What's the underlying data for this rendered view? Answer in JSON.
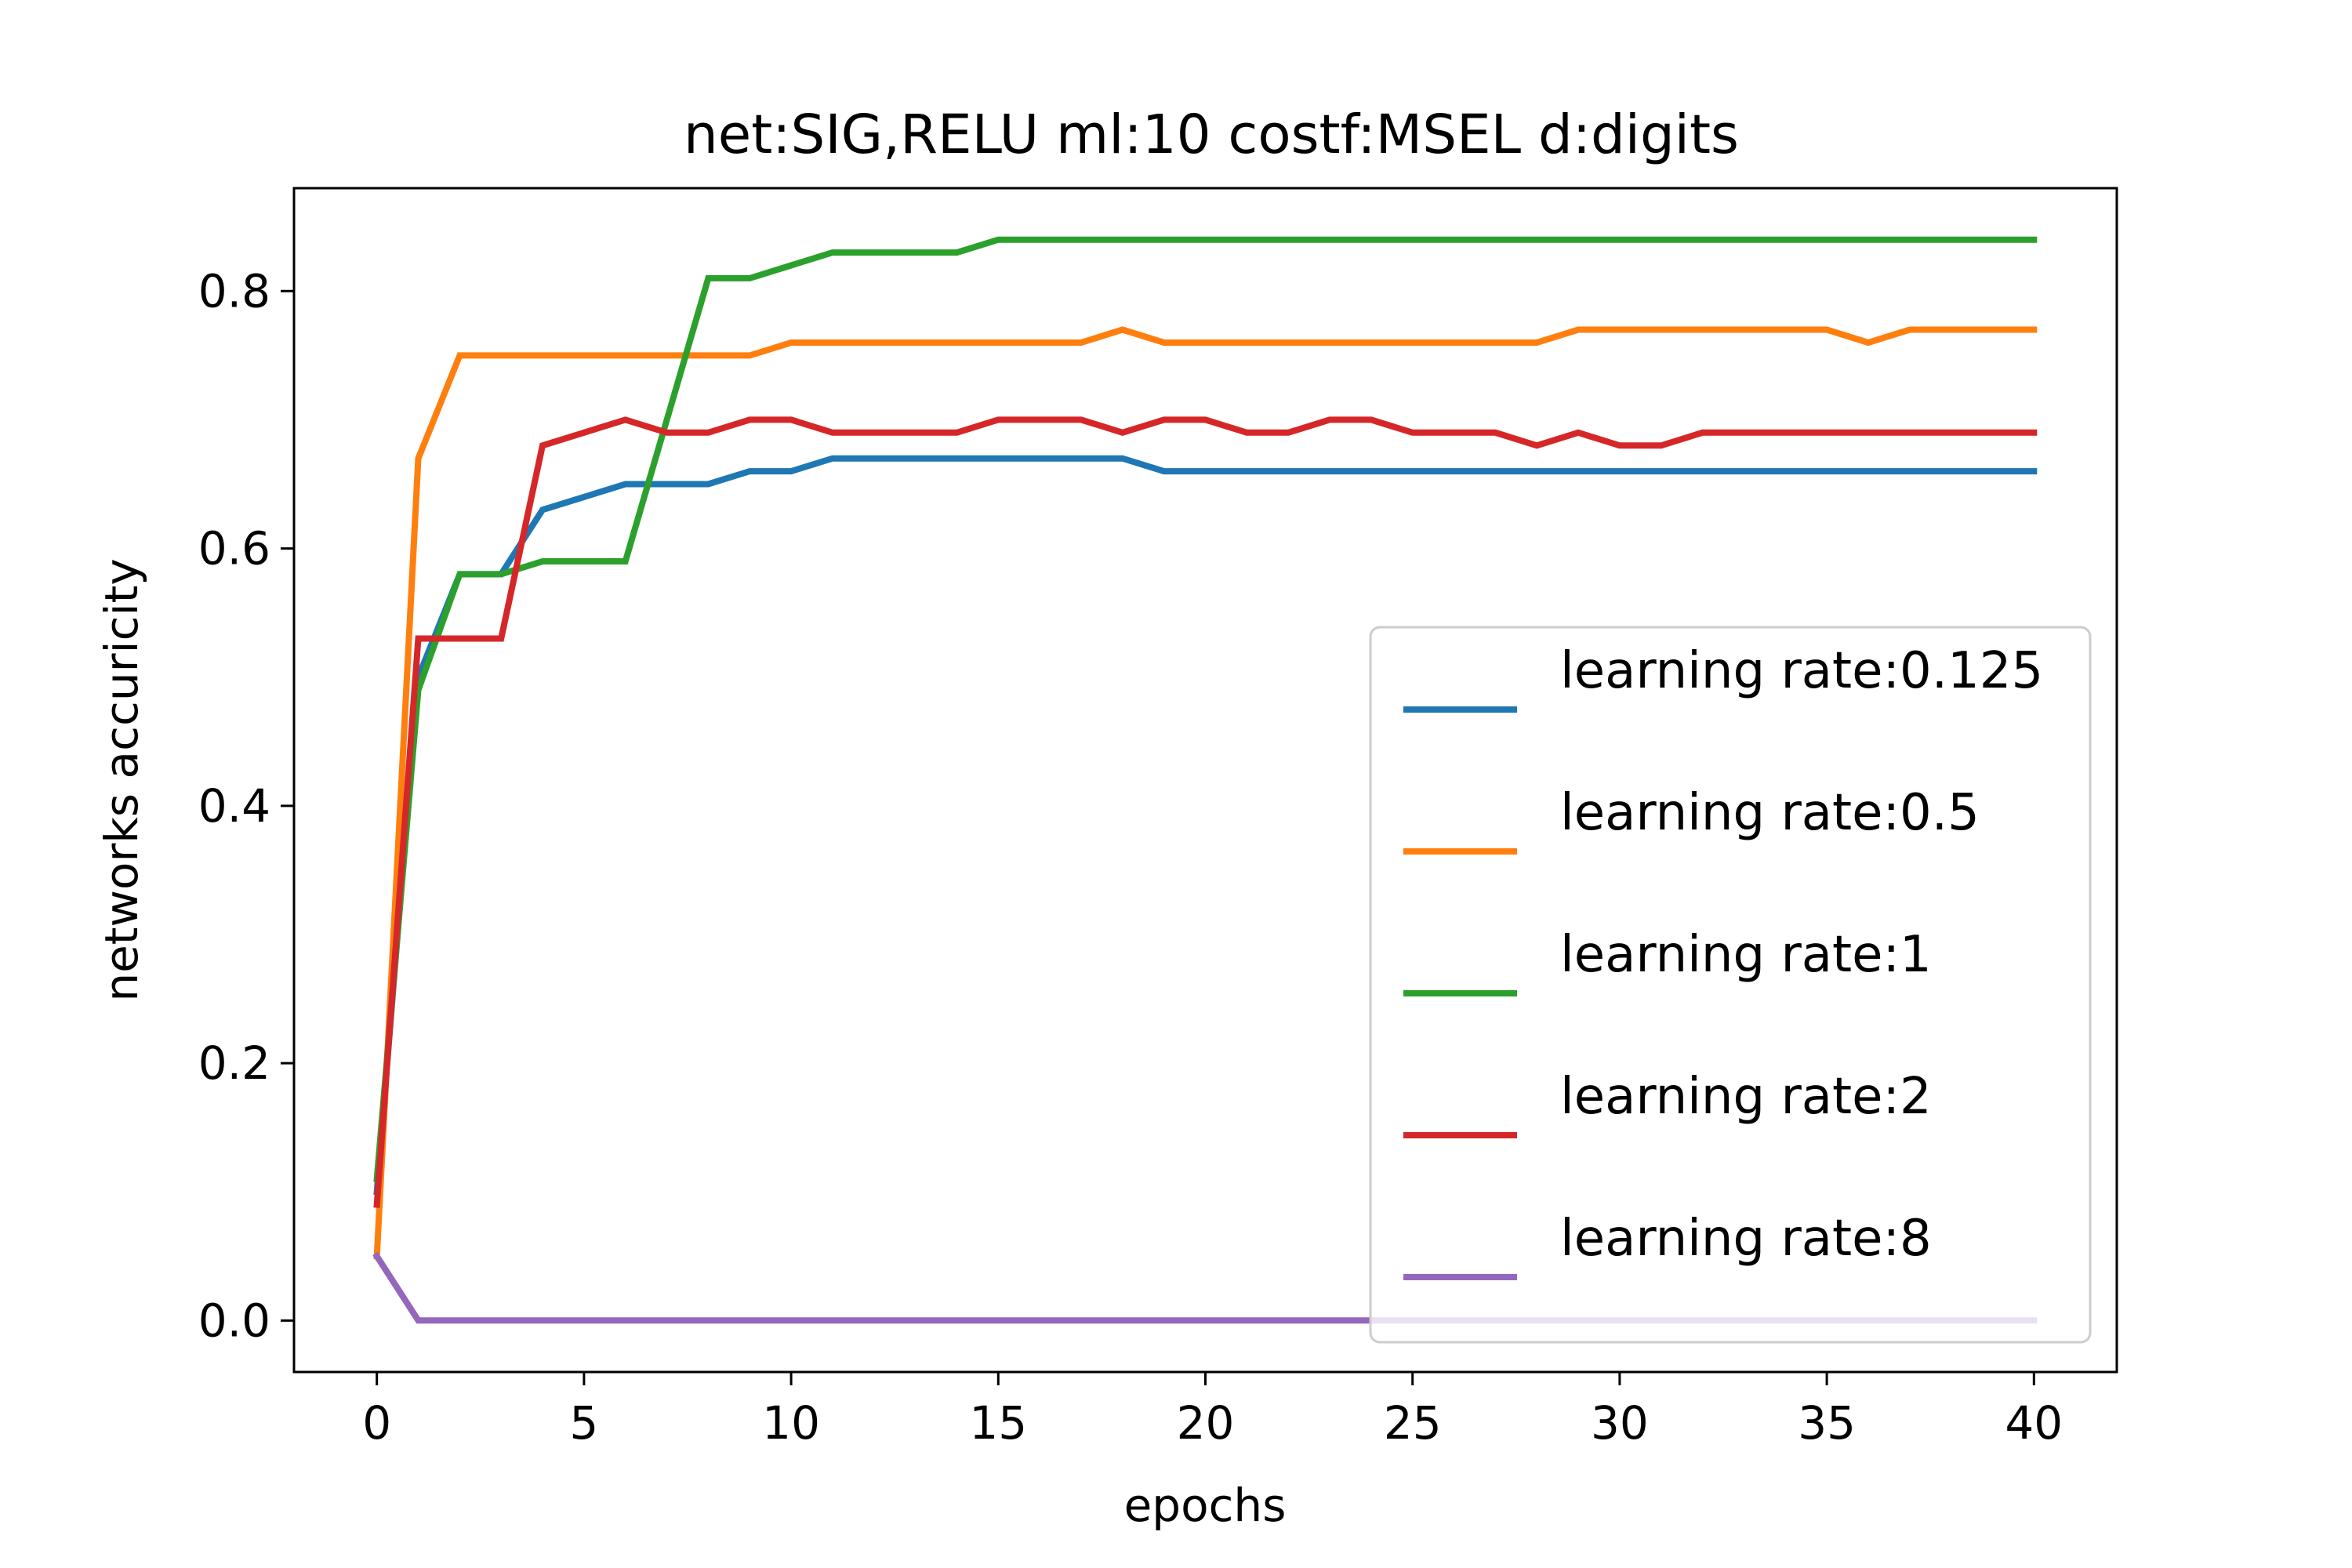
{
  "chart_data": {
    "type": "line",
    "title": "net:SIG,RELU ml:10 costf:MSEL d:digits",
    "xlabel": "epochs",
    "ylabel": "networks accuricity",
    "xlim": [
      -2,
      42
    ],
    "ylim": [
      -0.04,
      0.88
    ],
    "xticks": [
      0,
      5,
      10,
      15,
      20,
      25,
      30,
      35,
      40
    ],
    "xtick_labels": [
      "0",
      "5",
      "10",
      "15",
      "20",
      "25",
      "30",
      "35",
      "40"
    ],
    "yticks": [
      0.0,
      0.2,
      0.4,
      0.6,
      0.8
    ],
    "ytick_labels": [
      "0.0",
      "0.2",
      "0.4",
      "0.6",
      "0.8"
    ],
    "grid": false,
    "legend_position": "lower-right",
    "x": [
      0,
      1,
      2,
      3,
      4,
      5,
      6,
      7,
      8,
      9,
      10,
      11,
      12,
      13,
      14,
      15,
      16,
      17,
      18,
      19,
      20,
      21,
      22,
      23,
      24,
      25,
      26,
      27,
      28,
      29,
      30,
      31,
      32,
      33,
      34,
      35,
      36,
      37,
      38,
      39,
      40
    ],
    "series": [
      {
        "name": "learning rate:0.125",
        "color": "#1f77b4",
        "values": [
          0.1,
          0.5,
          0.58,
          0.58,
          0.63,
          0.64,
          0.65,
          0.65,
          0.65,
          0.66,
          0.66,
          0.67,
          0.67,
          0.67,
          0.67,
          0.67,
          0.67,
          0.67,
          0.67,
          0.66,
          0.66,
          0.66,
          0.66,
          0.66,
          0.66,
          0.66,
          0.66,
          0.66,
          0.66,
          0.66,
          0.66,
          0.66,
          0.66,
          0.66,
          0.66,
          0.66,
          0.66,
          0.66,
          0.66,
          0.66,
          0.66
        ]
      },
      {
        "name": "learning rate:0.5",
        "color": "#ff7f0e",
        "values": [
          0.05,
          0.67,
          0.75,
          0.75,
          0.75,
          0.75,
          0.75,
          0.75,
          0.75,
          0.75,
          0.76,
          0.76,
          0.76,
          0.76,
          0.76,
          0.76,
          0.76,
          0.76,
          0.77,
          0.76,
          0.76,
          0.76,
          0.76,
          0.76,
          0.76,
          0.76,
          0.76,
          0.76,
          0.76,
          0.77,
          0.77,
          0.77,
          0.77,
          0.77,
          0.77,
          0.77,
          0.76,
          0.77,
          0.77,
          0.77,
          0.77
        ]
      },
      {
        "name": "learning rate:1",
        "color": "#2ca02c",
        "values": [
          0.11,
          0.49,
          0.58,
          0.58,
          0.59,
          0.59,
          0.59,
          0.7,
          0.81,
          0.81,
          0.82,
          0.83,
          0.83,
          0.83,
          0.83,
          0.84,
          0.84,
          0.84,
          0.84,
          0.84,
          0.84,
          0.84,
          0.84,
          0.84,
          0.84,
          0.84,
          0.84,
          0.84,
          0.84,
          0.84,
          0.84,
          0.84,
          0.84,
          0.84,
          0.84,
          0.84,
          0.84,
          0.84,
          0.84,
          0.84,
          0.84
        ]
      },
      {
        "name": "learning rate:2",
        "color": "#d62728",
        "values": [
          0.09,
          0.53,
          0.53,
          0.53,
          0.68,
          0.69,
          0.7,
          0.69,
          0.69,
          0.7,
          0.7,
          0.69,
          0.69,
          0.69,
          0.69,
          0.7,
          0.7,
          0.7,
          0.69,
          0.7,
          0.7,
          0.69,
          0.69,
          0.7,
          0.7,
          0.69,
          0.69,
          0.69,
          0.68,
          0.69,
          0.68,
          0.68,
          0.69,
          0.69,
          0.69,
          0.69,
          0.69,
          0.69,
          0.69,
          0.69,
          0.69
        ]
      },
      {
        "name": "learning rate:8",
        "color": "#9467bd",
        "values": [
          0.05,
          0.0,
          0.0,
          0.0,
          0.0,
          0.0,
          0.0,
          0.0,
          0.0,
          0.0,
          0.0,
          0.0,
          0.0,
          0.0,
          0.0,
          0.0,
          0.0,
          0.0,
          0.0,
          0.0,
          0.0,
          0.0,
          0.0,
          0.0,
          0.0,
          0.0,
          0.0,
          0.0,
          0.0,
          0.0,
          0.0,
          0.0,
          0.0,
          0.0,
          0.0,
          0.0,
          0.0,
          0.0,
          0.0,
          0.0,
          0.0
        ]
      }
    ]
  }
}
